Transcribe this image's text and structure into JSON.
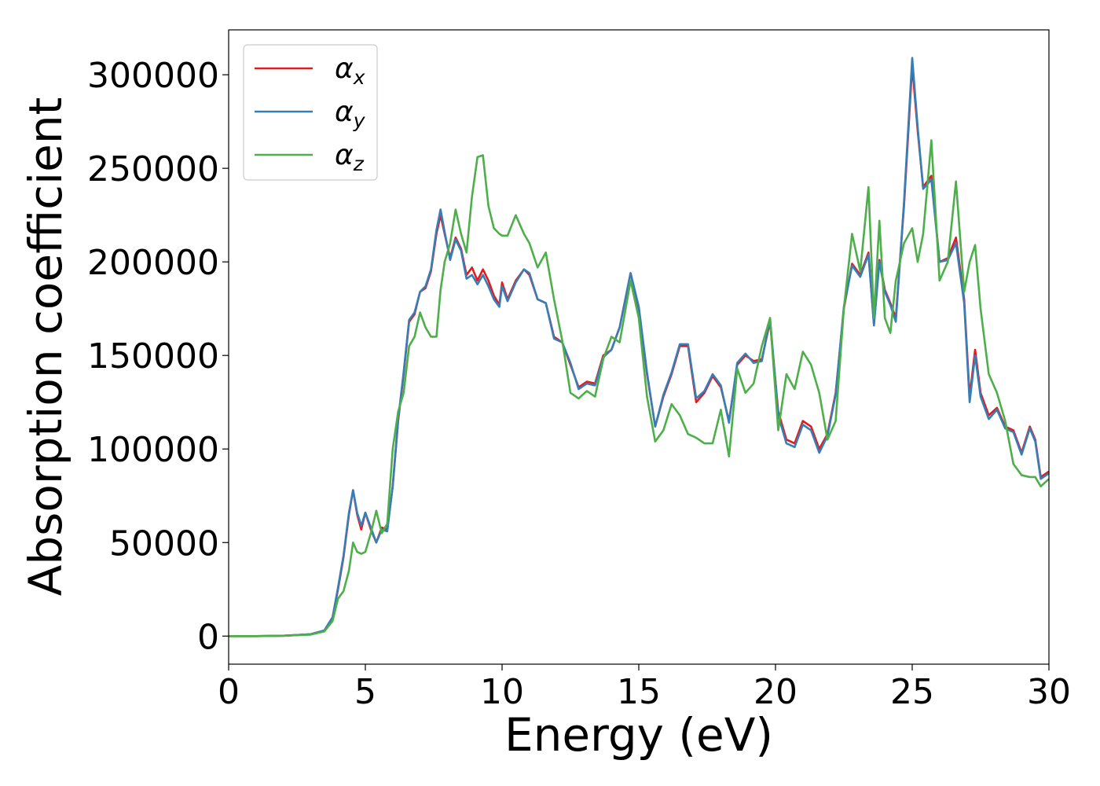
{
  "chart_data": {
    "type": "line",
    "xlabel": "Energy (eV)",
    "ylabel": "Absorption coefficient",
    "xlim": [
      0,
      30
    ],
    "xticks": [
      0,
      5,
      10,
      15,
      20,
      25,
      30
    ],
    "ylim": [
      -15000,
      324000
    ],
    "yticks": [
      0,
      50000,
      100000,
      150000,
      200000,
      250000,
      300000
    ],
    "legend": "upper left",
    "x": [
      0,
      1,
      2,
      3,
      3.5,
      3.8,
      4,
      4.2,
      4.4,
      4.55,
      4.7,
      4.85,
      5.0,
      5.2,
      5.4,
      5.6,
      5.8,
      6.0,
      6.2,
      6.4,
      6.6,
      6.8,
      7.0,
      7.2,
      7.4,
      7.6,
      7.75,
      7.9,
      8.1,
      8.3,
      8.5,
      8.7,
      8.9,
      9.1,
      9.3,
      9.5,
      9.7,
      9.9,
      10.0,
      10.2,
      10.5,
      10.8,
      11.0,
      11.3,
      11.6,
      11.9,
      12.2,
      12.5,
      12.8,
      13.1,
      13.4,
      13.7,
      14.0,
      14.3,
      14.7,
      15.0,
      15.3,
      15.6,
      15.9,
      16.2,
      16.5,
      16.8,
      17.1,
      17.4,
      17.7,
      18.0,
      18.3,
      18.6,
      18.9,
      19.2,
      19.5,
      19.8,
      20.1,
      20.4,
      20.7,
      21.0,
      21.3,
      21.6,
      21.9,
      22.2,
      22.5,
      22.8,
      23.1,
      23.4,
      23.6,
      23.8,
      24.0,
      24.2,
      24.4,
      24.7,
      25.0,
      25.2,
      25.4,
      25.7,
      26.0,
      26.3,
      26.6,
      26.9,
      27.1,
      27.3,
      27.5,
      27.8,
      28.1,
      28.4,
      28.7,
      29.0,
      29.3,
      29.5,
      29.7,
      30
    ],
    "series": [
      {
        "name": "αx",
        "color": "#e41a1c",
        "values": [
          0,
          0,
          200,
          1000,
          3000,
          10000,
          25000,
          42000,
          65000,
          78000,
          65000,
          57000,
          66000,
          57000,
          50000,
          58000,
          57000,
          80000,
          115000,
          140000,
          168000,
          172000,
          184000,
          186000,
          195000,
          215000,
          225000,
          215000,
          202000,
          213000,
          207000,
          193000,
          197000,
          190000,
          196000,
          190000,
          182000,
          177000,
          189000,
          180000,
          190000,
          196000,
          193000,
          180000,
          178000,
          160000,
          157000,
          145000,
          133000,
          136000,
          135000,
          150000,
          153000,
          165000,
          194000,
          175000,
          140000,
          112000,
          128000,
          140000,
          155000,
          155000,
          125000,
          130000,
          139000,
          133000,
          115000,
          145000,
          150000,
          147000,
          148000,
          168000,
          120000,
          105000,
          103000,
          115000,
          112000,
          100000,
          108000,
          130000,
          175000,
          199000,
          193000,
          205000,
          167000,
          201000,
          185000,
          178000,
          170000,
          230000,
          305000,
          270000,
          240000,
          246000,
          200000,
          202000,
          213000,
          180000,
          128000,
          153000,
          130000,
          118000,
          122000,
          112000,
          110000,
          98000,
          112000,
          105000,
          85000,
          88000
        ]
      },
      {
        "name": "αy",
        "color": "#377eb8",
        "values": [
          0,
          0,
          200,
          1000,
          3000,
          10000,
          26000,
          43000,
          66000,
          78000,
          66000,
          59000,
          66000,
          58000,
          50000,
          57000,
          56000,
          80000,
          116000,
          141000,
          169000,
          173000,
          184000,
          187000,
          196000,
          217000,
          228000,
          216000,
          201000,
          212000,
          206000,
          191000,
          193000,
          188000,
          193000,
          187000,
          180000,
          176000,
          187000,
          179000,
          189000,
          196000,
          194000,
          180000,
          178000,
          159000,
          157000,
          146000,
          132000,
          135000,
          134000,
          149000,
          153000,
          165000,
          194000,
          176000,
          141000,
          112000,
          129000,
          141000,
          156000,
          156000,
          127000,
          131000,
          140000,
          134000,
          114000,
          146000,
          151000,
          146000,
          147000,
          170000,
          118000,
          103000,
          101000,
          113000,
          110000,
          98000,
          107000,
          129000,
          176000,
          198000,
          192000,
          204000,
          166000,
          200000,
          184000,
          177000,
          168000,
          232000,
          309000,
          272000,
          239000,
          244000,
          200000,
          201000,
          210000,
          178000,
          125000,
          150000,
          128000,
          116000,
          121000,
          111000,
          109000,
          97000,
          111000,
          104000,
          84000,
          87000
        ]
      },
      {
        "name": "αz",
        "color": "#4daf4a",
        "values": [
          0,
          0,
          200,
          800,
          2500,
          8000,
          20000,
          24000,
          35000,
          50000,
          45000,
          44000,
          45000,
          55000,
          67000,
          55000,
          60000,
          100000,
          120000,
          130000,
          155000,
          160000,
          173000,
          165000,
          160000,
          160000,
          185000,
          200000,
          210000,
          228000,
          215000,
          205000,
          235000,
          256000,
          257000,
          230000,
          218000,
          215000,
          214000,
          214000,
          225000,
          215000,
          210000,
          197000,
          205000,
          180000,
          158000,
          130000,
          127000,
          131000,
          128000,
          148000,
          160000,
          157000,
          190000,
          170000,
          128000,
          104000,
          110000,
          124000,
          118000,
          108000,
          106000,
          103000,
          103000,
          121000,
          96000,
          143000,
          130000,
          135000,
          155000,
          170000,
          110000,
          140000,
          132000,
          152000,
          145000,
          130000,
          105000,
          115000,
          175000,
          215000,
          195000,
          240000,
          170000,
          222000,
          170000,
          162000,
          190000,
          210000,
          218000,
          200000,
          215000,
          265000,
          190000,
          200000,
          243000,
          184000,
          200000,
          209000,
          175000,
          140000,
          130000,
          115000,
          92000,
          86000,
          85000,
          85000,
          80000,
          84000
        ]
      }
    ]
  }
}
